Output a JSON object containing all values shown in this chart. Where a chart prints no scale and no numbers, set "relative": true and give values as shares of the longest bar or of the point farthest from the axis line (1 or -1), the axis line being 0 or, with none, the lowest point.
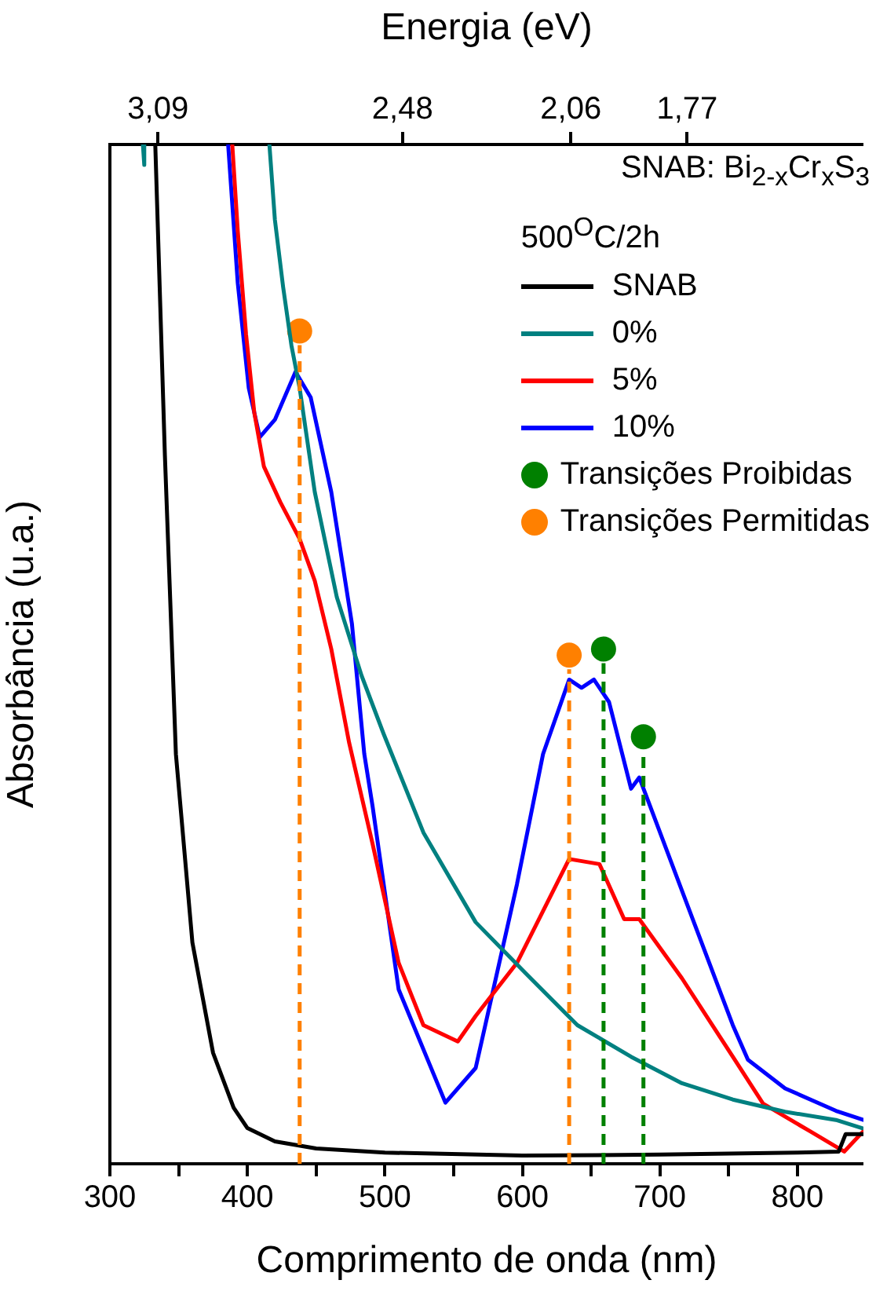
{
  "chart_data": {
    "type": "line",
    "relative": true,
    "xlabel": "Comprimento de onda (nm)",
    "ylabel": "Absorbância (u.a.)",
    "x2label": "Energia (eV)",
    "legend_title": "500$^{O}$C/2h",
    "legend": "top right",
    "annotations": [
      "SNAB: Bi$_{2-x}$Cr$_{x}$S$_{3}$"
    ],
    "xlim": [
      300,
      848
    ],
    "xticks": [
      300,
      {
        "value": 350,
        "label": null
      },
      400,
      {
        "value": 450,
        "label": null
      },
      500,
      {
        "value": 550,
        "label": null
      },
      600,
      {
        "value": 650,
        "label": null
      },
      700,
      {
        "value": 750,
        "label": null
      },
      800
    ],
    "x2lim": [
      3.21,
      1.33
    ],
    "x2ticks": [
      {
        "value": 3.09,
        "label": "3,09"
      },
      {
        "value": 2.48,
        "label": "2,48"
      },
      {
        "value": 2.06,
        "label": "2,06"
      },
      {
        "value": 1.77,
        "label": "1,77"
      }
    ],
    "series": [
      {
        "name": "SNAB",
        "color": "#000000",
        "x": [
          333,
          340,
          348,
          360,
          375,
          390,
          400,
          420,
          450,
          500,
          600,
          700,
          800,
          830,
          835,
          848
        ],
        "values": [
          1.0,
          0.695,
          0.402,
          0.217,
          0.109,
          0.055,
          0.035,
          0.022,
          0.015,
          0.011,
          0.008,
          0.009,
          0.011,
          0.012,
          0.029,
          0.029
        ]
      },
      {
        "name": "0%",
        "color": "#008080",
        "x": [
          324,
          325,
          326,
          416,
          420,
          426,
          432,
          438,
          449,
          465,
          483,
          499,
          528,
          566,
          603,
          640,
          679,
          716,
          753,
          791,
          828,
          847
        ],
        "values": [
          1.0,
          0.98,
          null,
          1.0,
          0.926,
          0.86,
          0.803,
          0.761,
          0.659,
          0.556,
          0.479,
          0.422,
          0.325,
          0.237,
          0.186,
          0.136,
          0.105,
          0.079,
          0.063,
          0.051,
          0.043,
          0.035
        ]
      },
      {
        "name": "5%",
        "color": "#ff0000",
        "x": [
          389,
          393,
          399,
          405,
          412,
          424,
          438,
          449,
          461,
          474,
          491,
          510,
          528,
          553,
          566,
          596,
          615,
          634,
          656,
          674,
          685,
          716,
          753,
          775,
          809,
          834,
          848
        ],
        "values": [
          1.0,
          0.915,
          0.814,
          0.737,
          0.684,
          0.649,
          0.613,
          0.572,
          0.505,
          0.413,
          0.314,
          0.197,
          0.136,
          0.12,
          0.145,
          0.197,
          0.248,
          0.299,
          0.294,
          0.24,
          0.24,
          0.182,
          0.105,
          0.059,
          0.032,
          0.012,
          0.032
        ]
      },
      {
        "name": "10%",
        "color": "#0000ff",
        "x": [
          386,
          393,
          401,
          409,
          420,
          435,
          446,
          461,
          476,
          485,
          491,
          510,
          544,
          566,
          596,
          615,
          634,
          643,
          652,
          663,
          679,
          685,
          716,
          753,
          764,
          791,
          828,
          848
        ],
        "values": [
          1.0,
          0.864,
          0.761,
          0.713,
          0.73,
          0.777,
          0.752,
          0.659,
          0.53,
          0.402,
          0.351,
          0.171,
          0.06,
          0.094,
          0.274,
          0.402,
          0.475,
          0.467,
          0.475,
          0.453,
          0.368,
          0.379,
          0.268,
          0.136,
          0.102,
          0.074,
          0.052,
          0.043
        ]
      },
      {
        "name": "Transições Proibidas",
        "type": "scatter",
        "marker": "circle",
        "color": "#008000",
        "x": [
          659,
          688
        ],
        "values": [
          0.505,
          0.419
        ]
      },
      {
        "name": "Transições Permitidas",
        "type": "scatter",
        "marker": "circle",
        "color": "#ff8000",
        "x": [
          438,
          634
        ],
        "values": [
          0.817,
          0.499
        ]
      }
    ],
    "ref_lines": [
      {
        "axis": "x",
        "value": 438,
        "color": "#ff8000",
        "line_style": "dashed"
      },
      {
        "axis": "x",
        "value": 634,
        "color": "#ff8000",
        "line_style": "dashed"
      },
      {
        "axis": "x",
        "value": 659,
        "color": "#008000",
        "line_style": "dashed"
      },
      {
        "axis": "x",
        "value": 688,
        "color": "#008000",
        "line_style": "dashed"
      }
    ]
  }
}
